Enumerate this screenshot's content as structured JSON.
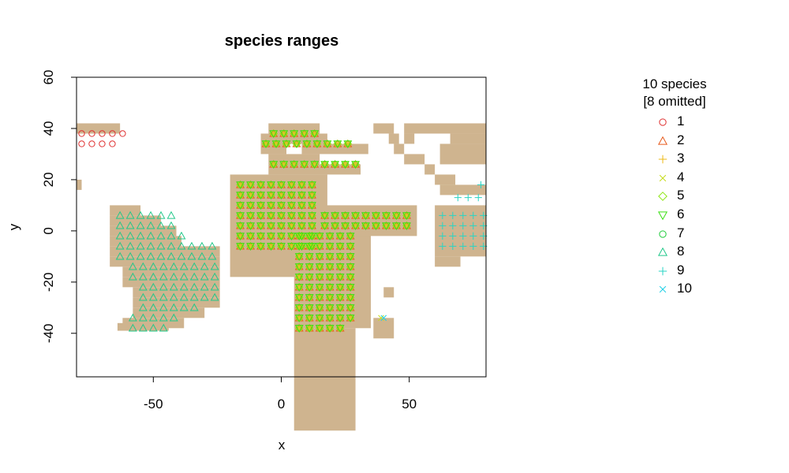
{
  "chart_data": {
    "type": "scatter",
    "title": "species ranges",
    "xlabel": "x",
    "ylabel": "y",
    "xlim": [
      -80,
      80
    ],
    "ylim": [
      -57,
      60
    ],
    "x_ticks": [
      -50,
      0,
      50
    ],
    "y_ticks": [
      -40,
      -20,
      0,
      20,
      40,
      60
    ],
    "grid": false,
    "land_color": "#cfb48f",
    "land_cells": [
      [
        -82,
        42,
        19,
        4
      ],
      [
        -82,
        20,
        4,
        4
      ],
      [
        -67,
        10,
        12,
        4
      ],
      [
        -67,
        6,
        20,
        4
      ],
      [
        -67,
        2,
        26,
        4
      ],
      [
        -67,
        -2,
        28,
        4
      ],
      [
        -67,
        -6,
        43,
        4
      ],
      [
        -67,
        -10,
        43,
        4
      ],
      [
        -62,
        -14,
        38,
        4
      ],
      [
        -62,
        -18,
        38,
        4
      ],
      [
        -58,
        -22,
        34,
        4
      ],
      [
        -58,
        -26,
        34,
        4
      ],
      [
        -58,
        -30,
        28,
        4
      ],
      [
        -62,
        -34,
        24,
        4
      ],
      [
        -64,
        -36,
        20,
        3
      ],
      [
        -20,
        22,
        38,
        40
      ],
      [
        -5,
        42,
        20,
        4
      ],
      [
        -8,
        38,
        26,
        4
      ],
      [
        -8,
        34,
        10,
        4
      ],
      [
        8,
        34,
        26,
        4
      ],
      [
        -5,
        30,
        20,
        4
      ],
      [
        -5,
        26,
        36,
        4
      ],
      [
        5,
        2,
        30,
        40
      ],
      [
        5,
        -38,
        24,
        40
      ],
      [
        15,
        10,
        38,
        12
      ],
      [
        36,
        -34,
        8,
        8
      ],
      [
        40,
        -22,
        4,
        4
      ],
      [
        36,
        42,
        8,
        4
      ],
      [
        48,
        42,
        34,
        4
      ],
      [
        42,
        38,
        4,
        4
      ],
      [
        48,
        38,
        4,
        4
      ],
      [
        66,
        38,
        16,
        4
      ],
      [
        44,
        34,
        4,
        4
      ],
      [
        62,
        34,
        20,
        8
      ],
      [
        48,
        30,
        8,
        4
      ],
      [
        56,
        26,
        4,
        4
      ],
      [
        60,
        22,
        8,
        4
      ],
      [
        62,
        18,
        20,
        4
      ],
      [
        60,
        10,
        22,
        20
      ],
      [
        60,
        -10,
        10,
        4
      ]
    ],
    "series": [
      {
        "name": "1",
        "marker": "circle",
        "color": "#df2f2f",
        "cells": [
          [
            -80,
            40,
            22,
            4
          ],
          [
            -80,
            36,
            16,
            4
          ]
        ]
      },
      {
        "name": "2",
        "marker": "triangle",
        "color": "#e65a1c",
        "cells": [
          [
            -18,
            20,
            34,
            28
          ],
          [
            -5,
            40,
            20,
            4
          ],
          [
            -8,
            36,
            38,
            4
          ],
          [
            -5,
            28,
            36,
            4
          ],
          [
            5,
            0,
            26,
            36
          ],
          [
            5,
            -36,
            22,
            4
          ],
          [
            15,
            8,
            36,
            8
          ]
        ]
      },
      {
        "name": "3",
        "marker": "plus",
        "color": "#ecb814",
        "cells": [
          [
            -18,
            20,
            34,
            28
          ],
          [
            -5,
            40,
            20,
            4
          ],
          [
            -8,
            36,
            38,
            4
          ],
          [
            -5,
            28,
            36,
            4
          ],
          [
            5,
            0,
            26,
            36
          ],
          [
            5,
            -36,
            22,
            4
          ],
          [
            15,
            8,
            36,
            8
          ]
        ]
      },
      {
        "name": "4",
        "marker": "x",
        "color": "#c6dc1c",
        "cells": [
          [
            -18,
            20,
            34,
            28
          ],
          [
            -5,
            40,
            20,
            4
          ],
          [
            -8,
            36,
            38,
            4
          ],
          [
            -5,
            28,
            36,
            4
          ],
          [
            5,
            0,
            26,
            36
          ],
          [
            5,
            -36,
            22,
            4
          ],
          [
            15,
            8,
            36,
            8
          ],
          [
            37,
            -32,
            6,
            6
          ]
        ]
      },
      {
        "name": "5",
        "marker": "diamond",
        "color": "#8ee614",
        "cells": [
          [
            -18,
            20,
            34,
            28
          ],
          [
            -5,
            40,
            20,
            4
          ],
          [
            -8,
            36,
            38,
            4
          ],
          [
            -5,
            28,
            36,
            4
          ],
          [
            5,
            0,
            26,
            36
          ],
          [
            5,
            -36,
            22,
            4
          ],
          [
            15,
            8,
            36,
            8
          ]
        ]
      },
      {
        "name": "6",
        "marker": "triangle-down",
        "color": "#3adf14",
        "cells": [
          [
            -18,
            20,
            34,
            28
          ],
          [
            -5,
            40,
            20,
            4
          ],
          [
            -8,
            36,
            38,
            4
          ],
          [
            -5,
            28,
            36,
            4
          ],
          [
            5,
            0,
            26,
            36
          ],
          [
            5,
            -36,
            22,
            4
          ],
          [
            15,
            8,
            36,
            8
          ]
        ]
      },
      {
        "name": "7",
        "marker": "circle",
        "color": "#1ecb3a",
        "cells": []
      },
      {
        "name": "8",
        "marker": "triangle",
        "color": "#22c88a",
        "cells": [
          [
            -65,
            8,
            24,
            4
          ],
          [
            -65,
            4,
            26,
            4
          ],
          [
            -65,
            0,
            28,
            4
          ],
          [
            -65,
            -4,
            40,
            4
          ],
          [
            -65,
            -8,
            40,
            4
          ],
          [
            -60,
            -12,
            36,
            4
          ],
          [
            -60,
            -16,
            36,
            4
          ],
          [
            -56,
            -20,
            32,
            4
          ],
          [
            -56,
            -24,
            32,
            4
          ],
          [
            -56,
            -28,
            26,
            4
          ],
          [
            -60,
            -32,
            22,
            4
          ],
          [
            -60,
            -36,
            18,
            3
          ]
        ]
      },
      {
        "name": "9",
        "marker": "plus",
        "color": "#2ad4c4",
        "cells": [
          [
            61,
            8,
            20,
            16
          ],
          [
            61,
            -10,
            8,
            2
          ],
          [
            67,
            15,
            14,
            3
          ],
          [
            76,
            20,
            4,
            3
          ]
        ]
      },
      {
        "name": "10",
        "marker": "x",
        "color": "#1fcfe6",
        "cells": [
          [
            38,
            -32,
            6,
            6
          ]
        ]
      }
    ],
    "legend": {
      "placement": "right",
      "header": "10 species",
      "subheader": "[8 omitted]"
    }
  }
}
